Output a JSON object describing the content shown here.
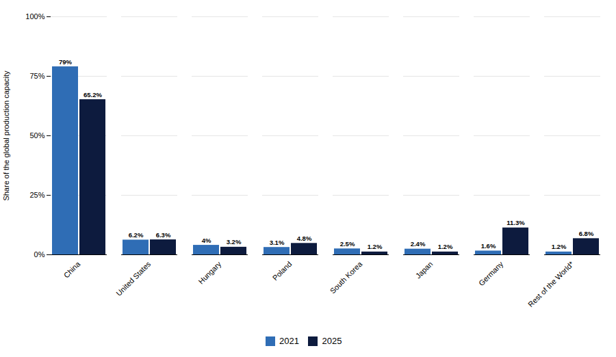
{
  "chart_data": {
    "type": "bar",
    "categories": [
      "China",
      "United States",
      "Hungary",
      "Poland",
      "South Korea",
      "Japan",
      "Germany",
      "Rest of the World*"
    ],
    "series": [
      {
        "name": "2021",
        "color": "#2F6DB5",
        "values": [
          79,
          6.2,
          4,
          3.1,
          2.5,
          2.4,
          1.6,
          1.2
        ],
        "value_labels": [
          "79%",
          "6.2%",
          "4%",
          "3.1%",
          "2.5%",
          "2.4%",
          "1.6%",
          "1.2%"
        ]
      },
      {
        "name": "2025",
        "color": "#0D1B3E",
        "values": [
          65.2,
          6.3,
          3.2,
          4.8,
          1.2,
          1.2,
          11.3,
          6.8
        ],
        "value_labels": [
          "65.2%",
          "6.3%",
          "3.2%",
          "4.8%",
          "1.2%",
          "1.2%",
          "11.3%",
          "6.8%"
        ]
      }
    ],
    "ylabel": "Share of the global production capacity",
    "ylim": [
      0,
      100
    ],
    "yticks": [
      {
        "value": 0,
        "label": "0%"
      },
      {
        "value": 25,
        "label": "25%"
      },
      {
        "value": 50,
        "label": "50%"
      },
      {
        "value": 75,
        "label": "75%"
      },
      {
        "value": 100,
        "label": "100%"
      }
    ],
    "grid": true,
    "legend": "bottom",
    "data_labels": true
  }
}
